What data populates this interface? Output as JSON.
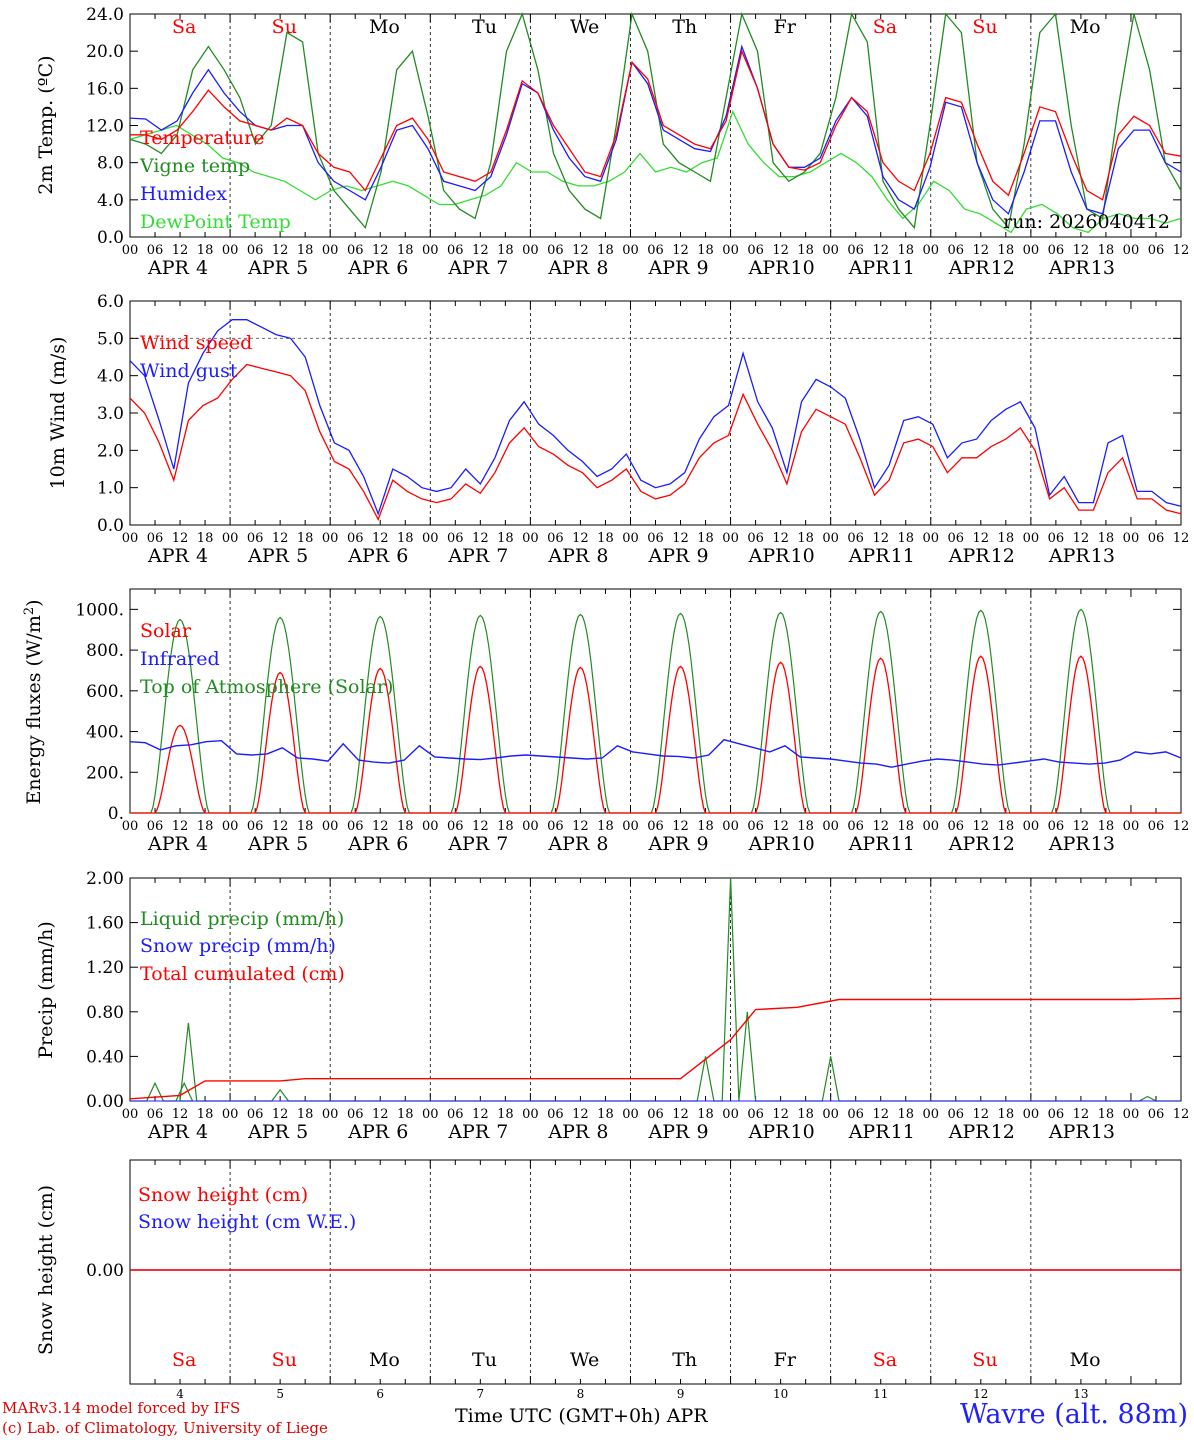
{
  "chart_data": [
    {
      "type": "line",
      "ylabel": "2m Temp. (ºC)",
      "ylim": [
        0,
        24
      ],
      "yticks": [
        "0.0",
        "4.0",
        "8.0",
        "12.0",
        "16.0",
        "20.0",
        "24.0"
      ],
      "annotation": "run: 2026040412",
      "x_step_hours": 6,
      "series": [
        {
          "name": "Temperature",
          "color": "#ff0000",
          "values": [
            11,
            11,
            10.5,
            11.5,
            13.5,
            15.8,
            14,
            12.5,
            12,
            11.5,
            12.8,
            12,
            9,
            7.5,
            7,
            5,
            8.5,
            12,
            12.8,
            10.5,
            7,
            6.5,
            6,
            7,
            11.5,
            16.8,
            15.5,
            12,
            9.5,
            7,
            6.5,
            11,
            18.8,
            17,
            12,
            11,
            10,
            9.5,
            12.5,
            20,
            16,
            10,
            7.5,
            7.2,
            8,
            12,
            15,
            13.5,
            8,
            6,
            5,
            9,
            15,
            14.5,
            10,
            6,
            4.5,
            9,
            14,
            13.5,
            9,
            5,
            4,
            11,
            13,
            12,
            9,
            8.7
          ]
        },
        {
          "name": "Vigne temp",
          "color": "#228b22",
          "values": [
            10.5,
            10,
            9,
            11,
            18,
            20.5,
            18,
            15,
            10,
            12,
            22,
            21,
            9,
            5,
            3,
            1,
            7,
            18,
            20,
            13,
            5,
            3,
            2,
            8,
            20,
            24,
            18,
            9,
            5,
            3,
            2,
            12,
            24,
            20,
            10,
            8,
            7,
            6,
            15,
            24,
            20,
            8,
            6,
            7,
            9,
            15,
            24,
            21,
            6,
            3,
            1,
            12,
            24,
            22,
            8,
            3,
            1,
            10,
            22,
            24,
            12,
            3,
            2,
            14,
            24,
            18,
            8,
            5
          ]
        },
        {
          "name": "Humidex",
          "color": "#1c1cff",
          "values": [
            12.8,
            12.7,
            11.5,
            12.5,
            15.5,
            18,
            15.5,
            13.5,
            12,
            11.5,
            12,
            12,
            8,
            6,
            5,
            4,
            7.5,
            11.5,
            12,
            9.5,
            6,
            5.5,
            5,
            6.5,
            11,
            16.5,
            15.5,
            11.5,
            8.5,
            6.5,
            6,
            10.5,
            18.8,
            16.5,
            11.5,
            10.5,
            9.5,
            9.2,
            13,
            20.5,
            16,
            10,
            7.5,
            7.5,
            8.5,
            12.5,
            15,
            13,
            6.5,
            4,
            3,
            7.5,
            14.5,
            14,
            8,
            4,
            2.5,
            7,
            12.5,
            12.5,
            7,
            3,
            2.5,
            9.5,
            11.5,
            11.5,
            8,
            7
          ]
        },
        {
          "name": "DewPoint Temp",
          "color": "#33dd33",
          "values": [
            10.5,
            11,
            11.5,
            12,
            11,
            10,
            8.5,
            8,
            7,
            6.5,
            6,
            5,
            4,
            5,
            5.5,
            5,
            5.5,
            6,
            5.5,
            4.5,
            3.5,
            3.5,
            4,
            4.5,
            5.5,
            8,
            7,
            7,
            6,
            5.5,
            5.5,
            6,
            7,
            9,
            7,
            7.5,
            7,
            8,
            8.5,
            13.5,
            10,
            8,
            6.5,
            6.5,
            7,
            8,
            9,
            8,
            6.5,
            4,
            2,
            3.5,
            6,
            5,
            3,
            2.5,
            1.5,
            0.5,
            3,
            3.5,
            2.5,
            1,
            0.5,
            2,
            2.5,
            2,
            2,
            1.5,
            2
          ]
        }
      ],
      "legend": [
        "Temperature",
        "Vigne temp",
        "Humidex",
        "DewPoint Temp"
      ],
      "day_names": [
        "Sa",
        "Su",
        "Mo",
        "Tu",
        "We",
        "Th",
        "Fr",
        "Sa",
        "Su",
        "Mo"
      ]
    },
    {
      "type": "line",
      "ylabel": "10m Wind (m/s)",
      "ylim": [
        0,
        6
      ],
      "yticks": [
        "0.0",
        "1.0",
        "2.0",
        "3.0",
        "4.0",
        "5.0",
        "6.0"
      ],
      "reference_line": 5.0,
      "x_step_hours": 6,
      "series": [
        {
          "name": "Wind speed",
          "color": "#ff0000",
          "values": [
            3.4,
            3,
            2.2,
            1.2,
            2.8,
            3.2,
            3.4,
            3.9,
            4.3,
            4.2,
            4.1,
            4,
            3.6,
            2.5,
            1.7,
            1.5,
            0.9,
            0.15,
            1.2,
            0.9,
            0.7,
            0.6,
            0.7,
            1.1,
            0.85,
            1.4,
            2.2,
            2.6,
            2.1,
            1.9,
            1.6,
            1.4,
            1.0,
            1.2,
            1.5,
            0.9,
            0.7,
            0.8,
            1.1,
            1.8,
            2.2,
            2.4,
            3.5,
            2.7,
            2,
            1.1,
            2.5,
            3.1,
            2.9,
            2.7,
            1.8,
            0.8,
            1.2,
            2.2,
            2.3,
            2.1,
            1.4,
            1.8,
            1.8,
            2.1,
            2.3,
            2.6,
            2.0,
            0.7,
            1.0,
            0.4,
            0.4,
            1.4,
            1.8,
            0.7,
            0.7,
            0.4,
            0.3
          ]
        },
        {
          "name": "Wind gust",
          "color": "#1c1cff",
          "values": [
            4.4,
            4.0,
            2.8,
            1.5,
            3.8,
            4.6,
            5.2,
            5.5,
            5.5,
            5.3,
            5.1,
            5.0,
            4.5,
            3.2,
            2.2,
            2.0,
            1.3,
            0.3,
            1.5,
            1.3,
            1.0,
            0.9,
            1.0,
            1.5,
            1.1,
            1.8,
            2.8,
            3.3,
            2.7,
            2.4,
            2.0,
            1.7,
            1.3,
            1.5,
            1.9,
            1.2,
            1.0,
            1.1,
            1.4,
            2.3,
            2.9,
            3.2,
            4.6,
            3.3,
            2.6,
            1.4,
            3.3,
            3.9,
            3.7,
            3.4,
            2.3,
            1.0,
            1.6,
            2.8,
            2.9,
            2.7,
            1.8,
            2.2,
            2.3,
            2.8,
            3.1,
            3.3,
            2.6,
            0.8,
            1.3,
            0.6,
            0.6,
            2.2,
            2.4,
            0.9,
            0.9,
            0.6,
            0.5
          ]
        }
      ],
      "legend": [
        "Wind speed",
        "Wind gust"
      ]
    },
    {
      "type": "line",
      "ylabel": "Energy fluxes (W/m²)",
      "ylim": [
        0,
        1100
      ],
      "yticks": [
        "0.",
        "200.",
        "400.",
        "600.",
        "800.",
        "1000."
      ],
      "solar_peaks": [
        430,
        690,
        710,
        720,
        715,
        720,
        740,
        760,
        770,
        770
      ],
      "toa_peaks": [
        950,
        960,
        965,
        970,
        975,
        980,
        985,
        990,
        995,
        1000
      ],
      "infrared_values": [
        350,
        345,
        310,
        330,
        335,
        350,
        355,
        290,
        285,
        290,
        320,
        270,
        265,
        255,
        340,
        260,
        250,
        245,
        260,
        330,
        275,
        270,
        265,
        262,
        270,
        280,
        285,
        280,
        275,
        270,
        265,
        270,
        330,
        300,
        290,
        280,
        278,
        270,
        285,
        360,
        340,
        320,
        300,
        330,
        275,
        270,
        265,
        255,
        245,
        240,
        225,
        240,
        255,
        265,
        260,
        250,
        240,
        235,
        245,
        255,
        265,
        250,
        245,
        240,
        245,
        260,
        300,
        290,
        300,
        270
      ]
    },
    {
      "type": "line",
      "ylabel": "Precip (mm/h)",
      "ylim": [
        0,
        2
      ],
      "yticks": [
        "0.00",
        "0.40",
        "0.80",
        "1.20",
        "1.60",
        "2.00"
      ],
      "series": [
        {
          "name": "Liquid precip (mm/h)",
          "color": "#228b22"
        },
        {
          "name": "Snow precip (mm/h)",
          "color": "#1c1cff"
        },
        {
          "name": "Total cumulated (cm)",
          "color": "#ff0000"
        }
      ],
      "liquid_peaks": [
        {
          "h": 6,
          "v": 0.16
        },
        {
          "h": 13,
          "v": 0.16
        },
        {
          "h": 14,
          "v": 0.7
        },
        {
          "h": 36,
          "v": 0.1
        },
        {
          "h": 138,
          "v": 0.4
        },
        {
          "h": 144,
          "v": 2.0
        },
        {
          "h": 148,
          "v": 0.8
        },
        {
          "h": 168,
          "v": 0.4
        },
        {
          "h": 244,
          "v": 0.04
        }
      ],
      "cumulated": [
        {
          "h": 0,
          "v": 0.02
        },
        {
          "h": 12,
          "v": 0.05
        },
        {
          "h": 18,
          "v": 0.18
        },
        {
          "h": 36,
          "v": 0.18
        },
        {
          "h": 42,
          "v": 0.2
        },
        {
          "h": 132,
          "v": 0.2
        },
        {
          "h": 144,
          "v": 0.55
        },
        {
          "h": 150,
          "v": 0.82
        },
        {
          "h": 160,
          "v": 0.84
        },
        {
          "h": 170,
          "v": 0.91
        },
        {
          "h": 240,
          "v": 0.91
        },
        {
          "h": 252,
          "v": 0.92
        }
      ]
    },
    {
      "type": "line",
      "ylabel": "Snow height (cm)",
      "ytick": "0.00",
      "series": [
        {
          "name": "Snow height (cm)",
          "color": "#ff0000",
          "values": [
            0
          ]
        },
        {
          "name": "Snow height (cm W.E.)",
          "color": "#1c1cff",
          "values": [
            0
          ]
        }
      ]
    }
  ],
  "axis": {
    "hour_labels": [
      "00",
      "06",
      "12",
      "18"
    ],
    "month": "APR",
    "days": [
      "4",
      "5",
      "6",
      "7",
      "8",
      "9",
      "10",
      "11",
      "12",
      "13"
    ],
    "day_names": [
      "Sa",
      "Su",
      "Mo",
      "Tu",
      "We",
      "Th",
      "Fr",
      "Sa",
      "Su",
      "Mo"
    ],
    "weekend_color": "#ff0000",
    "weekday_color": "#000000"
  },
  "labels": {
    "temp": {
      "ylabel": "2m Temp. (ºC)",
      "run": "run: 2026040412",
      "l1": "Temperature",
      "l2": "Vigne temp",
      "l3": "Humidex",
      "l4": "DewPoint Temp"
    },
    "wind": {
      "ylabel": "10m Wind (m/s)",
      "l1": "Wind speed",
      "l2": "Wind gust"
    },
    "energy": {
      "ylabel": "Energy fluxes (W/m",
      "ysup": "2",
      "yend": ")",
      "l1": "Solar",
      "l2": "Infrared",
      "l3": "Top of Atmosphere (Solar)"
    },
    "precip": {
      "ylabel": "Precip (mm/h)",
      "l1": "Liquid precip (mm/h)",
      "l2": "Snow precip (mm/h)",
      "l3": "Total cumulated (cm)"
    },
    "snow": {
      "ylabel": "Snow height (cm)",
      "l1": "Snow height (cm)",
      "l2": "Snow height (cm W.E.)"
    }
  },
  "footer": {
    "model": "MARv3.14 model forced by IFS",
    "copyright": "(c) Lab. of Climatology, University of Liege",
    "xtitle": "Time UTC (GMT+0h) APR",
    "location": "Wavre (alt. 88m)"
  }
}
